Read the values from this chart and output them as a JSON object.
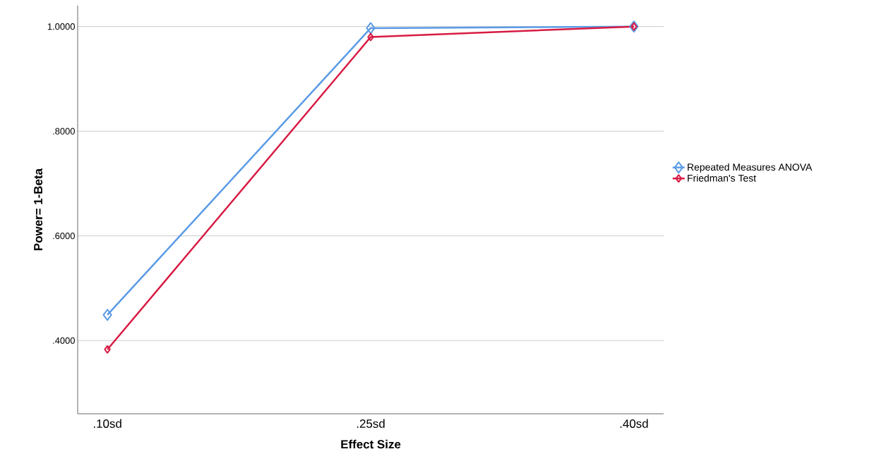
{
  "chart_data": {
    "type": "line",
    "xlabel": "Effect Size",
    "ylabel": "Power= 1-Beta",
    "categories": [
      ".10sd",
      ".25sd",
      ".40sd"
    ],
    "series": [
      {
        "name": "Repeated Measures ANOVA",
        "color": "#5b9be6",
        "values": [
          0.449,
          0.997,
          1.0
        ]
      },
      {
        "name": "Friedman's Test",
        "color": "#d81b43",
        "values": [
          0.383,
          0.98,
          1.0
        ]
      }
    ],
    "ylim": [
      0.26,
      1.04
    ],
    "yticks": [
      {
        "value": 0.4,
        "label": ".4000"
      },
      {
        "value": 0.6,
        "label": ".6000"
      },
      {
        "value": 0.8,
        "label": ".8000"
      },
      {
        "value": 1.0,
        "label": "1.0000"
      }
    ],
    "grid": "y",
    "legend": "right",
    "marker": "diamond",
    "line_style": "solid"
  }
}
